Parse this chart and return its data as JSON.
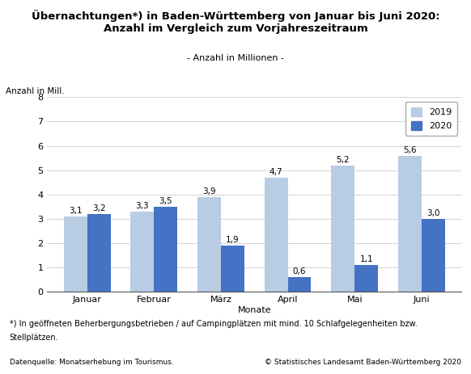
{
  "title_line1": "Übernachtungen*) in Baden-Württemberg von Januar bis Juni 2020:",
  "title_line2": "Anzahl im Vergleich zum Vorjahreszeitraum",
  "subtitle": "- Anzahl in Millionen -",
  "ylabel": "Anzahl in Mill.",
  "xlabel": "Monate",
  "categories": [
    "Januar",
    "Februar",
    "März",
    "April",
    "Mai",
    "Juni"
  ],
  "values_2019": [
    3.1,
    3.3,
    3.9,
    4.7,
    5.2,
    5.6
  ],
  "values_2020": [
    3.2,
    3.5,
    1.9,
    0.6,
    1.1,
    3.0
  ],
  "color_2019": "#b8cce4",
  "color_2020": "#4472c4",
  "ylim": [
    0,
    8
  ],
  "yticks": [
    0,
    1,
    2,
    3,
    4,
    5,
    6,
    7,
    8
  ],
  "legend_labels": [
    "2019",
    "2020"
  ],
  "footnote1": "*) In geöffneten Beherbergungsbetrieben / auf Campingplätzen mit mind. 10 Schlafgelegenheiten bzw.",
  "footnote2": "Stellplätzen.",
  "source_left": "Datenquelle: Monatserhebung im Tourismus.",
  "source_right": "© Statistisches Landesamt Baden-Württemberg 2020",
  "bar_width": 0.35,
  "value_fontsize": 7.5,
  "title_fontsize": 9.5,
  "subtitle_fontsize": 8,
  "tick_fontsize": 8,
  "legend_fontsize": 8,
  "footnote_fontsize": 7,
  "source_fontsize": 6.5,
  "ylabel_fontsize": 7.5
}
